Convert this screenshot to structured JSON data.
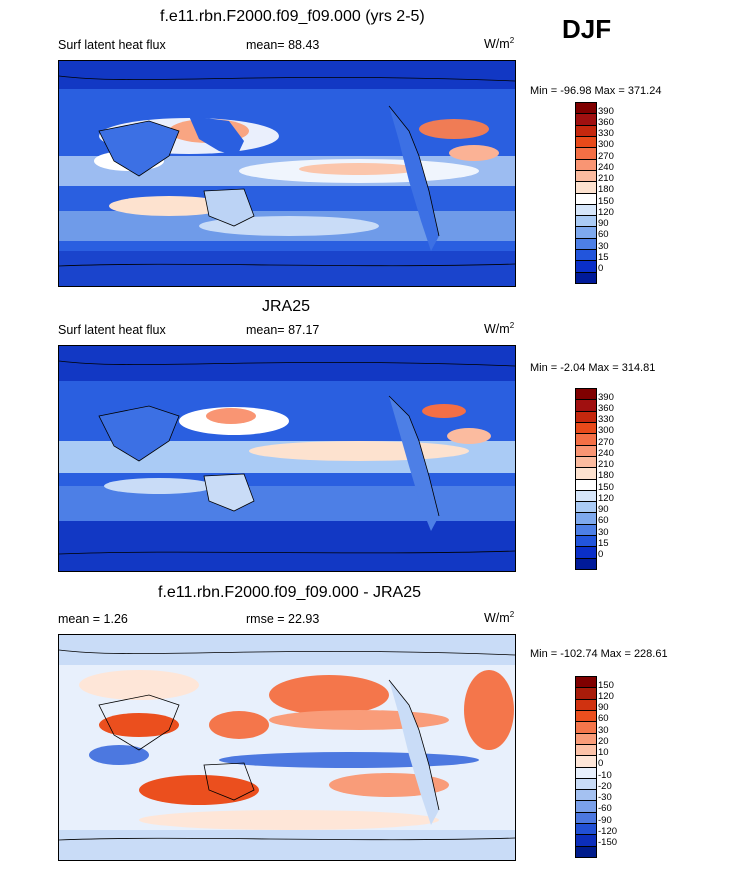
{
  "season": "DJF",
  "units_label": "W/m",
  "units_exp": "2",
  "panels": [
    {
      "title": "f.e11.rbn.F2000.f09_f09.000 (yrs 2-5)",
      "left_label": "Surf latent heat flux",
      "stat_label": "mean=",
      "stat_value": "88.43",
      "minmax": "Min = -96.98 Max = 371.24",
      "colorbar_ticks": [
        "390",
        "360",
        "330",
        "300",
        "270",
        "240",
        "210",
        "180",
        "150",
        "120",
        "90",
        "60",
        "30",
        "15",
        "0"
      ],
      "colorbar_colors": [
        "#7f0000",
        "#a01010",
        "#c5280e",
        "#e84a1a",
        "#f46f45",
        "#f99573",
        "#fbbb9f",
        "#fde2cf",
        "#ffffff",
        "#d6e6fa",
        "#aacbf5",
        "#7ea9ee",
        "#4d7fe6",
        "#2255dc",
        "#0a2fc8",
        "#001a99"
      ]
    },
    {
      "title": "JRA25",
      "left_label": "Surf latent heat flux",
      "stat_label": "mean=",
      "stat_value": "87.17",
      "minmax": "Min =  -2.04 Max = 314.81",
      "colorbar_ticks": [
        "390",
        "360",
        "330",
        "300",
        "270",
        "240",
        "210",
        "180",
        "150",
        "120",
        "90",
        "60",
        "30",
        "15",
        "0"
      ],
      "colorbar_colors": [
        "#7f0000",
        "#a01010",
        "#c5280e",
        "#e84a1a",
        "#f46f45",
        "#f99573",
        "#fbbb9f",
        "#fde2cf",
        "#ffffff",
        "#d6e6fa",
        "#aacbf5",
        "#7ea9ee",
        "#4d7fe6",
        "#2255dc",
        "#0a2fc8",
        "#001a99"
      ]
    },
    {
      "title": "f.e11.rbn.F2000.f09_f09.000 - JRA25",
      "left_label": "mean =",
      "left_value": "1.26",
      "stat_label": "rmse =",
      "stat_value": "22.93",
      "minmax": "Min = -102.74 Max = 228.61",
      "colorbar_ticks": [
        "150",
        "120",
        "90",
        "60",
        "30",
        "20",
        "10",
        "0",
        "-10",
        "-20",
        "-30",
        "-60",
        "-90",
        "-120",
        "-150"
      ],
      "colorbar_colors": [
        "#7f0000",
        "#a81c0a",
        "#d03210",
        "#eb4f1e",
        "#f4764b",
        "#f99c79",
        "#fcc2a8",
        "#fee6d8",
        "#e8f0fc",
        "#c9dcf7",
        "#a4c1f1",
        "#7aa0ea",
        "#4c78e0",
        "#2150d4",
        "#0c2ebb",
        "#001c8c"
      ]
    }
  ]
}
